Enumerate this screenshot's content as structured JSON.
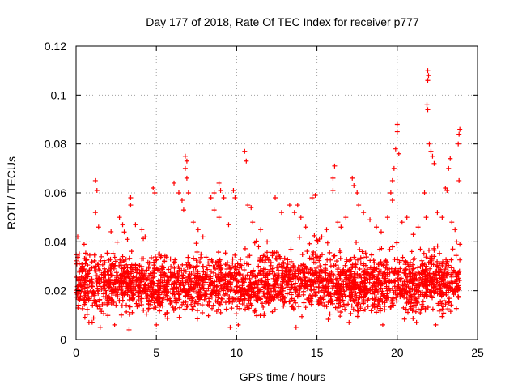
{
  "chart_data": {
    "type": "scatter",
    "title": "Day 177 of 2018, Rate Of TEC Index for receiver p777",
    "xlabel": "GPS time / hours",
    "ylabel": "ROTI / TECUs",
    "xlim": [
      0,
      25
    ],
    "ylim": [
      0,
      0.12
    ],
    "x_ticks": [
      "0",
      "5",
      "10",
      "15",
      "20",
      "25"
    ],
    "x_tick_values": [
      0,
      5,
      10,
      15,
      20,
      25
    ],
    "y_ticks": [
      "0",
      "0.02",
      "0.04",
      "0.06",
      "0.08",
      "0.1",
      "0.12"
    ],
    "y_tick_values": [
      0,
      0.02,
      0.04,
      0.06,
      0.08,
      0.1,
      0.12
    ],
    "grid": true,
    "marker": "+",
    "color": "#ff0000",
    "series": [
      {
        "name": "ROTI",
        "points": [
          [
            0.1,
            0.042
          ],
          [
            0.2,
            0.035
          ],
          [
            0.4,
            0.03
          ],
          [
            0.5,
            0.039
          ],
          [
            0.6,
            0.033
          ],
          [
            1.2,
            0.065
          ],
          [
            1.3,
            0.061
          ],
          [
            1.2,
            0.052
          ],
          [
            1.4,
            0.046
          ],
          [
            2.7,
            0.05
          ],
          [
            2.9,
            0.047
          ],
          [
            3.0,
            0.044
          ],
          [
            3.2,
            0.041
          ],
          [
            3.4,
            0.058
          ],
          [
            3.4,
            0.055
          ],
          [
            3.7,
            0.047
          ],
          [
            4.1,
            0.045
          ],
          [
            4.3,
            0.042
          ],
          [
            3.3,
            0.004
          ],
          [
            1.5,
            0.005
          ],
          [
            2.4,
            0.006
          ],
          [
            0.8,
            0.007
          ],
          [
            4.8,
            0.062
          ],
          [
            4.9,
            0.06
          ],
          [
            5.2,
            0.035
          ],
          [
            5.5,
            0.032
          ],
          [
            5.0,
            0.006
          ],
          [
            6.1,
            0.064
          ],
          [
            6.4,
            0.06
          ],
          [
            6.6,
            0.057
          ],
          [
            6.7,
            0.053
          ],
          [
            6.8,
            0.075
          ],
          [
            6.9,
            0.073
          ],
          [
            6.8,
            0.07
          ],
          [
            6.9,
            0.066
          ],
          [
            7.0,
            0.06
          ],
          [
            7.3,
            0.048
          ],
          [
            7.6,
            0.045
          ],
          [
            7.9,
            0.042
          ],
          [
            8.4,
            0.058
          ],
          [
            8.6,
            0.06
          ],
          [
            8.9,
            0.064
          ],
          [
            9.0,
            0.061
          ],
          [
            9.2,
            0.058
          ],
          [
            8.6,
            0.053
          ],
          [
            8.9,
            0.05
          ],
          [
            9.5,
            0.047
          ],
          [
            9.8,
            0.061
          ],
          [
            9.9,
            0.058
          ],
          [
            10.1,
            0.006
          ],
          [
            9.6,
            0.005
          ],
          [
            10.5,
            0.077
          ],
          [
            10.6,
            0.073
          ],
          [
            10.7,
            0.055
          ],
          [
            10.9,
            0.054
          ],
          [
            11.0,
            0.048
          ],
          [
            11.5,
            0.045
          ],
          [
            11.9,
            0.04
          ],
          [
            12.4,
            0.058
          ],
          [
            12.8,
            0.052
          ],
          [
            13.3,
            0.055
          ],
          [
            13.6,
            0.052
          ],
          [
            13.8,
            0.055
          ],
          [
            14.0,
            0.05
          ],
          [
            14.3,
            0.046
          ],
          [
            14.7,
            0.058
          ],
          [
            14.9,
            0.059
          ],
          [
            13.7,
            0.005
          ],
          [
            15.3,
            0.042
          ],
          [
            15.6,
            0.045
          ],
          [
            16.0,
            0.066
          ],
          [
            16.1,
            0.071
          ],
          [
            16.0,
            0.061
          ],
          [
            16.3,
            0.048
          ],
          [
            16.5,
            0.046
          ],
          [
            16.8,
            0.05
          ],
          [
            17.2,
            0.066
          ],
          [
            17.3,
            0.063
          ],
          [
            17.5,
            0.06
          ],
          [
            17.6,
            0.055
          ],
          [
            17.9,
            0.052
          ],
          [
            18.3,
            0.049
          ],
          [
            17.0,
            0.007
          ],
          [
            18.7,
            0.046
          ],
          [
            19.0,
            0.044
          ],
          [
            19.4,
            0.05
          ],
          [
            19.6,
            0.06
          ],
          [
            19.7,
            0.065
          ],
          [
            19.8,
            0.07
          ],
          [
            19.9,
            0.078
          ],
          [
            20.0,
            0.088
          ],
          [
            20.0,
            0.085
          ],
          [
            20.1,
            0.076
          ],
          [
            19.7,
            0.057
          ],
          [
            20.3,
            0.048
          ],
          [
            20.6,
            0.05
          ],
          [
            21.0,
            0.043
          ],
          [
            21.3,
            0.046
          ],
          [
            21.7,
            0.06
          ],
          [
            21.8,
            0.05
          ],
          [
            21.9,
            0.11
          ],
          [
            21.95,
            0.108
          ],
          [
            21.9,
            0.106
          ],
          [
            21.85,
            0.096
          ],
          [
            21.9,
            0.094
          ],
          [
            22.0,
            0.08
          ],
          [
            22.1,
            0.077
          ],
          [
            22.2,
            0.075
          ],
          [
            22.3,
            0.072
          ],
          [
            22.5,
            0.052
          ],
          [
            22.8,
            0.05
          ],
          [
            23.0,
            0.062
          ],
          [
            23.1,
            0.061
          ],
          [
            23.2,
            0.07
          ],
          [
            23.3,
            0.074
          ],
          [
            23.4,
            0.048
          ],
          [
            23.6,
            0.045
          ],
          [
            23.8,
            0.08
          ],
          [
            23.85,
            0.084
          ],
          [
            23.9,
            0.086
          ],
          [
            23.85,
            0.065
          ],
          [
            23.7,
            0.04
          ],
          [
            23.9,
            0.039
          ],
          [
            22.4,
            0.006
          ],
          [
            21.2,
            0.007
          ],
          [
            19.1,
            0.006
          ]
        ],
        "band": {
          "x_range": [
            0,
            23.9
          ],
          "description": "dense cloud of points between ROTI 0.005 and 0.04 across the whole day"
        }
      }
    ]
  }
}
